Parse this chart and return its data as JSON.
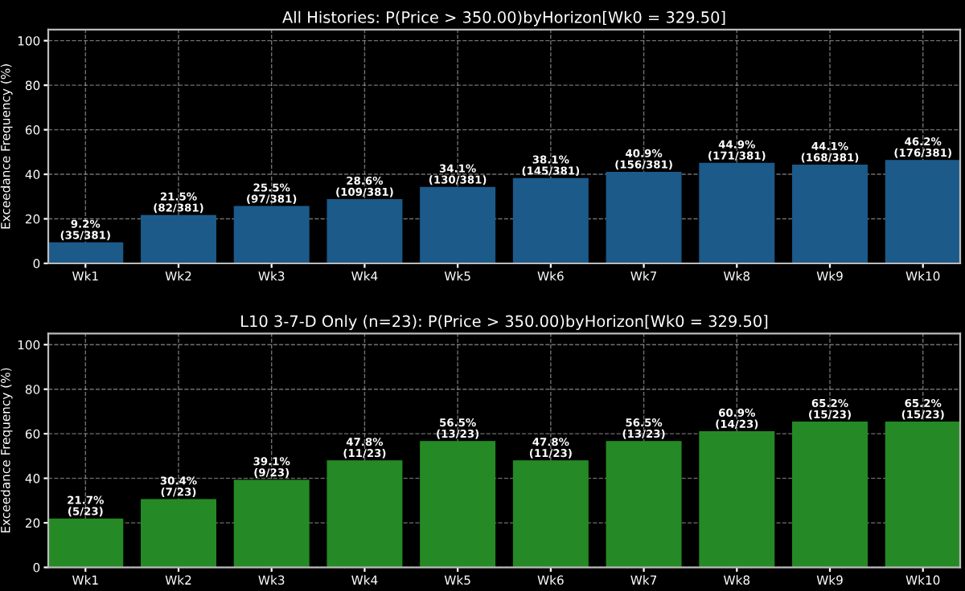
{
  "chart_data": [
    {
      "type": "bar",
      "title": "All Histories: P(Price > 350.00)byHorizon[Wk0 = 329.50]",
      "ylabel": "Exceedance Frequency (%)",
      "categories": [
        "Wk1",
        "Wk2",
        "Wk3",
        "Wk4",
        "Wk5",
        "Wk6",
        "Wk7",
        "Wk8",
        "Wk9",
        "Wk10"
      ],
      "values": [
        9.2,
        21.5,
        25.5,
        28.6,
        34.1,
        38.1,
        40.9,
        44.9,
        44.1,
        46.2
      ],
      "value_labels": [
        "9.2%\n(35/381)",
        "21.5%\n(82/381)",
        "25.5%\n(97/381)",
        "28.6%\n(109/381)",
        "34.1%\n(130/381)",
        "38.1%\n(145/381)",
        "40.9%\n(156/381)",
        "44.9%\n(171/381)",
        "44.1%\n(168/381)",
        "46.2%\n(176/381)"
      ],
      "color": "#1c5a8a",
      "ylim": [
        0,
        105
      ],
      "yticks": [
        0,
        20,
        40,
        60,
        80,
        100
      ],
      "grid": true
    },
    {
      "type": "bar",
      "title": "L10 3-7-D Only (n=23): P(Price > 350.00)byHorizon[Wk0 = 329.50]",
      "ylabel": "Exceedance Frequency (%)",
      "categories": [
        "Wk1",
        "Wk2",
        "Wk3",
        "Wk4",
        "Wk5",
        "Wk6",
        "Wk7",
        "Wk8",
        "Wk9",
        "Wk10"
      ],
      "values": [
        21.7,
        30.4,
        39.1,
        47.8,
        56.5,
        47.8,
        56.5,
        60.9,
        65.2,
        65.2
      ],
      "value_labels": [
        "21.7%\n(5/23)",
        "30.4%\n(7/23)",
        "39.1%\n(9/23)",
        "47.8%\n(11/23)",
        "56.5%\n(13/23)",
        "47.8%\n(11/23)",
        "56.5%\n(13/23)",
        "60.9%\n(14/23)",
        "65.2%\n(15/23)",
        "65.2%\n(15/23)"
      ],
      "color": "#258a25",
      "ylim": [
        0,
        105
      ],
      "yticks": [
        0,
        20,
        40,
        60,
        80,
        100
      ],
      "grid": true
    }
  ]
}
